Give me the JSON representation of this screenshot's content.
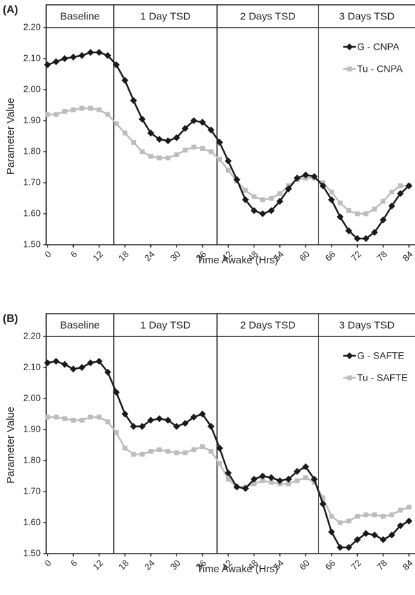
{
  "chart_data": [
    {
      "type": "line",
      "panel_label": "(A)",
      "xlabel": "Time Awake (Hrs)",
      "ylabel": "Parameter Value",
      "phase_labels": [
        "Baseline",
        "1 Day TSD",
        "2 Days TSD",
        "3 Days TSD"
      ],
      "phase_boundaries": [
        15.4,
        39.4,
        63
      ],
      "xlim": [
        -0.3,
        85.4
      ],
      "xticks": [
        0,
        6,
        12,
        18,
        24,
        30,
        36,
        42,
        48,
        54,
        60,
        66,
        72,
        78,
        84
      ],
      "ylim": [
        1.5,
        2.2
      ],
      "yticks": [
        {
          "value": 1.5,
          "label": "1.50"
        },
        {
          "value": 1.6,
          "label": "1.60"
        },
        {
          "value": 1.7,
          "label": "1.70"
        },
        {
          "value": 1.8,
          "label": "1.80"
        },
        {
          "value": 1.9,
          "label": "1.90"
        },
        {
          "value": 2.0,
          "label": "2.00"
        },
        {
          "value": 2.1,
          "label": "2.10"
        },
        {
          "value": 2.2,
          "label": "2.20"
        }
      ],
      "legend": "upper right",
      "x": [
        0,
        2,
        4,
        6,
        8,
        10,
        12,
        14,
        16,
        18,
        20,
        22,
        24,
        26,
        28,
        30,
        32,
        34,
        36,
        38,
        40,
        42,
        44,
        46,
        48,
        50,
        52,
        54,
        56,
        58,
        60,
        62,
        64,
        66,
        68,
        70,
        72,
        74,
        76,
        78,
        80,
        82,
        84
      ],
      "series": [
        {
          "name": "G - CNPA",
          "color": "#1a1a1a",
          "marker": "diamond",
          "values": [
            2.08,
            2.09,
            2.1,
            2.105,
            2.11,
            2.12,
            2.12,
            2.11,
            2.08,
            2.03,
            1.965,
            1.905,
            1.86,
            1.84,
            1.835,
            1.845,
            1.875,
            1.9,
            1.895,
            1.87,
            1.83,
            1.77,
            1.71,
            1.645,
            1.61,
            1.6,
            1.61,
            1.64,
            1.68,
            1.715,
            1.725,
            1.72,
            1.69,
            1.645,
            1.59,
            1.545,
            1.52,
            1.52,
            1.54,
            1.58,
            1.625,
            1.665,
            1.69
          ]
        },
        {
          "name": "Tu - CNPA",
          "color": "#bdbdbd",
          "marker": "square",
          "values": [
            1.92,
            1.92,
            1.93,
            1.935,
            1.94,
            1.94,
            1.935,
            1.92,
            1.89,
            1.86,
            1.83,
            1.8,
            1.785,
            1.78,
            1.78,
            1.79,
            1.805,
            1.815,
            1.81,
            1.8,
            1.775,
            1.74,
            1.705,
            1.675,
            1.655,
            1.645,
            1.65,
            1.665,
            1.69,
            1.71,
            1.715,
            1.715,
            1.7,
            1.67,
            1.635,
            1.61,
            1.6,
            1.6,
            1.615,
            1.64,
            1.67,
            1.69,
            1.69
          ]
        }
      ]
    },
    {
      "type": "line",
      "panel_label": "(B)",
      "xlabel": "Time Awake (Hrs)",
      "ylabel": "Parameter Value",
      "phase_labels": [
        "Baseline",
        "1 Day TSD",
        "2 Days TSD",
        "3 Days TSD"
      ],
      "phase_boundaries": [
        15.4,
        39.4,
        63
      ],
      "xlim": [
        -0.3,
        85.4
      ],
      "xticks": [
        0,
        6,
        12,
        18,
        24,
        30,
        36,
        42,
        48,
        54,
        60,
        66,
        72,
        78,
        84
      ],
      "ylim": [
        1.5,
        2.2
      ],
      "yticks": [
        {
          "value": 1.5,
          "label": "1.50"
        },
        {
          "value": 1.6,
          "label": "1.60"
        },
        {
          "value": 1.7,
          "label": "1.70"
        },
        {
          "value": 1.8,
          "label": "1.80"
        },
        {
          "value": 1.9,
          "label": "1.90"
        },
        {
          "value": 2.0,
          "label": "2.00"
        },
        {
          "value": 2.1,
          "label": "2.10"
        },
        {
          "value": 2.2,
          "label": "2.20"
        }
      ],
      "legend": "upper right",
      "x": [
        0,
        2,
        4,
        6,
        8,
        10,
        12,
        14,
        16,
        18,
        20,
        22,
        24,
        26,
        28,
        30,
        32,
        34,
        36,
        38,
        40,
        42,
        44,
        46,
        48,
        50,
        52,
        54,
        56,
        58,
        60,
        62,
        64,
        66,
        68,
        70,
        72,
        74,
        76,
        78,
        80,
        82,
        84
      ],
      "series": [
        {
          "name": "G - SAFTE",
          "color": "#1a1a1a",
          "marker": "diamond",
          "values": [
            2.115,
            2.12,
            2.11,
            2.095,
            2.1,
            2.115,
            2.12,
            2.085,
            2.02,
            1.95,
            1.91,
            1.91,
            1.93,
            1.935,
            1.93,
            1.91,
            1.92,
            1.94,
            1.95,
            1.91,
            1.84,
            1.76,
            1.715,
            1.71,
            1.74,
            1.75,
            1.745,
            1.735,
            1.74,
            1.765,
            1.78,
            1.74,
            1.66,
            1.57,
            1.52,
            1.52,
            1.545,
            1.565,
            1.56,
            1.545,
            1.56,
            1.59,
            1.605
          ]
        },
        {
          "name": "Tu - SAFTE",
          "color": "#bdbdbd",
          "marker": "square",
          "values": [
            1.94,
            1.94,
            1.935,
            1.93,
            1.93,
            1.94,
            1.94,
            1.925,
            1.89,
            1.84,
            1.82,
            1.82,
            1.83,
            1.835,
            1.83,
            1.825,
            1.825,
            1.835,
            1.845,
            1.83,
            1.79,
            1.74,
            1.715,
            1.715,
            1.725,
            1.735,
            1.73,
            1.725,
            1.725,
            1.735,
            1.745,
            1.73,
            1.68,
            1.62,
            1.6,
            1.605,
            1.62,
            1.625,
            1.625,
            1.62,
            1.625,
            1.64,
            1.65
          ]
        }
      ]
    }
  ]
}
